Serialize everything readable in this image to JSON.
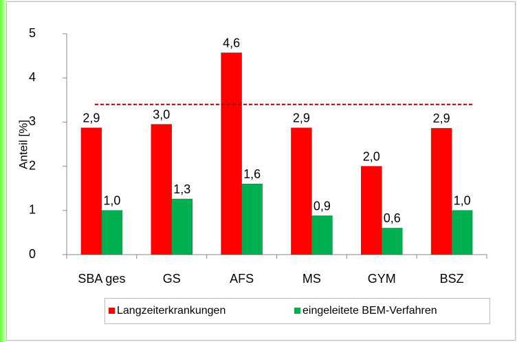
{
  "chart_data": {
    "type": "bar",
    "categories": [
      "SBA ges",
      "GS",
      "AFS",
      "MS",
      "GYM",
      "BSZ"
    ],
    "y_axis_label": "Anteil [%]",
    "series": [
      {
        "name": "Langzeiterkrankungen",
        "color": "#ff0000",
        "values": [
          2.87,
          2.95,
          4.57,
          2.87,
          2.0,
          2.86
        ],
        "value_labels": [
          "2,9",
          "3,0",
          "4,6",
          "2,9",
          "2,0",
          "2,9"
        ]
      },
      {
        "name": "eingeleitete BEM-Verfahren",
        "color": "#00b050",
        "values": [
          1.0,
          1.26,
          1.6,
          0.88,
          0.6,
          1.0
        ],
        "value_labels": [
          "1,0",
          "1,3",
          "1,6",
          "0,9",
          "0,6",
          "1,0"
        ]
      }
    ],
    "reference_value": 3.4,
    "reference_color": "#a00000",
    "ylim": [
      0,
      5
    ],
    "yticks": [
      0,
      1,
      2,
      3,
      4,
      5
    ],
    "legend": "bottom"
  }
}
